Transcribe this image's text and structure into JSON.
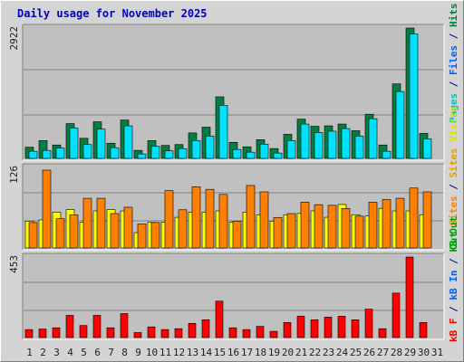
{
  "title": "Daily usage for November 2025",
  "colors": {
    "background": "#d4d4d4",
    "plot_bg": "#c0c0c0",
    "hits": "#008040",
    "files": "#00e0ff",
    "visits": "#ffff00",
    "sites": "#ff8000",
    "kbytes": "#ff0000",
    "weekday_label": "#000080",
    "weekend_label": "#008000"
  },
  "axis_labels": {
    "top_sep1": "/",
    "top_sep2": "/",
    "top": [
      "Pages",
      "Files",
      "Hits"
    ],
    "middle": [
      "Visits",
      "Sites",
      "Out",
      "Sites"
    ],
    "bottom": [
      "kB",
      "F",
      "kB",
      "In",
      "kB",
      "Out"
    ]
  },
  "chart_data": [
    {
      "type": "bar",
      "title": "Daily usage for November 2025",
      "categories": [
        "1",
        "2",
        "3",
        "4",
        "5",
        "6",
        "7",
        "8",
        "9",
        "10",
        "11",
        "12",
        "13",
        "14",
        "15",
        "16",
        "17",
        "18",
        "19",
        "20",
        "21",
        "22",
        "23",
        "24",
        "25",
        "26",
        "27",
        "28",
        "29",
        "30",
        "31"
      ],
      "weekend_days": [
        "1",
        "2",
        "8",
        "9",
        "15",
        "16",
        "22",
        "23",
        "29",
        "30"
      ],
      "ymax_label": "2922",
      "ylim": [
        0,
        2922
      ],
      "series": [
        {
          "name": "Hits",
          "values": [
            250,
            400,
            300,
            780,
            450,
            820,
            340,
            860,
            180,
            400,
            290,
            310,
            570,
            700,
            1380,
            360,
            260,
            420,
            220,
            540,
            880,
            720,
            730,
            770,
            620,
            990,
            300,
            1670,
            2922,
            560,
            0
          ]
        },
        {
          "name": "Files",
          "values": [
            220,
            240,
            290,
            740,
            370,
            720,
            300,
            790,
            160,
            330,
            230,
            280,
            460,
            560,
            1250,
            260,
            200,
            380,
            180,
            460,
            830,
            640,
            670,
            730,
            560,
            950,
            220,
            1560,
            2850,
            500,
            0
          ]
        }
      ]
    },
    {
      "type": "bar",
      "ymax_label": "126",
      "ylim": [
        0,
        126
      ],
      "series": [
        {
          "name": "Visits",
          "values": [
            42,
            44,
            56,
            60,
            40,
            58,
            60,
            58,
            24,
            40,
            40,
            48,
            56,
            56,
            58,
            40,
            56,
            52,
            42,
            52,
            54,
            58,
            48,
            68,
            52,
            50,
            62,
            58,
            58,
            52,
            0
          ]
        },
        {
          "name": "Sites",
          "values": [
            44,
            126,
            50,
            56,
            82,
            82,
            58,
            68,
            42,
            44,
            94,
            64,
            100,
            96,
            88,
            46,
            102,
            92,
            52,
            58,
            76,
            72,
            71,
            66,
            54,
            76,
            80,
            82,
            98,
            92,
            0
          ]
        }
      ]
    },
    {
      "type": "bar",
      "ymax_label": "453",
      "ylim": [
        0,
        453
      ],
      "series": [
        {
          "name": "KBytes",
          "values": [
            45,
            48,
            55,
            125,
            68,
            125,
            55,
            135,
            28,
            60,
            45,
            50,
            80,
            100,
            205,
            55,
            45,
            63,
            35,
            85,
            120,
            100,
            115,
            120,
            100,
            160,
            50,
            250,
            453,
            85,
            0
          ]
        }
      ]
    }
  ]
}
